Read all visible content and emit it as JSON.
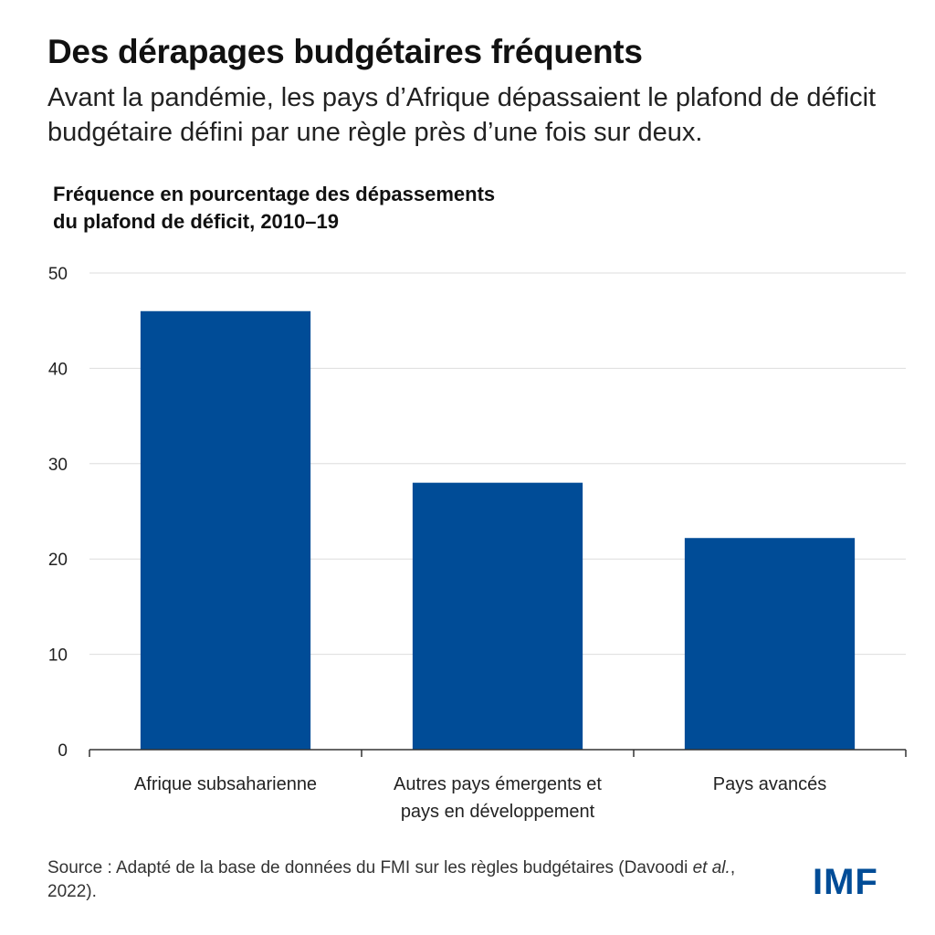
{
  "header": {
    "title": "Des dérapages budgétaires fréquents",
    "subtitle": "Avant la pandémie, les pays d’Afrique dépassaient le plafond de déficit budgétaire défini par une règle près d’une fois sur deux."
  },
  "chart_data": {
    "type": "bar",
    "title": "Fréquence en pourcentage des dépassements du plafond de déficit, 2010–19",
    "title_lines": [
      "Fréquence en pourcentage des dépassements",
      "du plafond de déficit, 2010–19"
    ],
    "categories": [
      "Afrique subsaharienne",
      "Autres pays émergents et pays en développement",
      "Pays avancés"
    ],
    "category_lines": [
      [
        "Afrique subsaharienne"
      ],
      [
        "Autres pays émergents et",
        "pays en développement"
      ],
      [
        "Pays avancés"
      ]
    ],
    "values": [
      46,
      28,
      22.2
    ],
    "ylim": [
      0,
      50
    ],
    "yticks": [
      "0",
      "10",
      "20",
      "30",
      "40",
      "50"
    ],
    "xlabel": "",
    "ylabel": "",
    "grid": true,
    "bar_color": "#004C97"
  },
  "footer": {
    "source_prefix": "Source : Adapté de la base de données du FMI sur les règles budgétaires (Davoodi ",
    "source_italic": "et al.",
    "source_suffix": ", 2022).",
    "logo": "IMF"
  },
  "colors": {
    "bar": "#004C97",
    "logo": "#004C97",
    "grid": "#dddddd"
  }
}
